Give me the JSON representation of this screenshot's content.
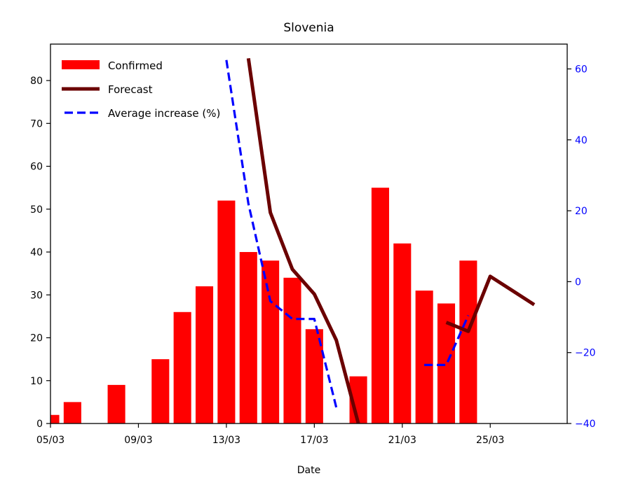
{
  "chart_data": {
    "type": "bar",
    "title": "Slovenia",
    "xlabel": "Date",
    "ylabel": "",
    "ylabel_right": "",
    "x_tick_labels": [
      "05/03",
      "09/03",
      "13/03",
      "17/03",
      "21/03",
      "25/03"
    ],
    "x_tick_days": [
      5,
      9,
      13,
      17,
      21,
      25
    ],
    "x_range_days": [
      5,
      28.5
    ],
    "ylim": [
      0,
      88.5
    ],
    "y_ticks": [
      0,
      10,
      20,
      30,
      40,
      50,
      60,
      70,
      80
    ],
    "ylim_right": [
      -40,
      67
    ],
    "y_ticks_right": [
      -40,
      -20,
      0,
      20,
      40,
      60
    ],
    "grid": false,
    "legend_position": "top-left",
    "series": [
      {
        "name": "Confirmed",
        "kind": "bar",
        "axis": "left",
        "color": "#ff0000",
        "days": [
          5,
          6,
          7,
          8,
          9,
          10,
          11,
          12,
          13,
          14,
          15,
          16,
          17,
          18,
          19,
          20,
          21,
          22,
          23,
          24
        ],
        "values": [
          2,
          5,
          0,
          9,
          0,
          15,
          26,
          32,
          52,
          40,
          38,
          34,
          22,
          0,
          11,
          55,
          42,
          31,
          28,
          38
        ]
      },
      {
        "name": "Forecast",
        "kind": "line",
        "axis": "right",
        "color": "#6b0000",
        "style": "solid",
        "segments": [
          [
            [
              14,
              63
            ],
            [
              15,
              19.5
            ],
            [
              16,
              3.5
            ],
            [
              17,
              -3.5
            ],
            [
              18,
              -16.5
            ],
            [
              19,
              -40
            ]
          ],
          [
            [
              23,
              -11.5
            ],
            [
              24,
              -14
            ],
            [
              25,
              1.5
            ],
            [
              26,
              -2.5
            ],
            [
              27,
              -6.5
            ]
          ]
        ]
      },
      {
        "name": "Average increase (%)",
        "kind": "line",
        "axis": "right",
        "color": "#0000ff",
        "style": "dashed",
        "segments": [
          [
            [
              13,
              62.5
            ],
            [
              14,
              22
            ],
            [
              15,
              -5.5
            ],
            [
              16,
              -10.5
            ],
            [
              17,
              -10.5
            ],
            [
              18,
              -35.5
            ]
          ],
          [
            [
              22,
              -23.5
            ],
            [
              23,
              -23.5
            ],
            [
              24,
              -9.5
            ]
          ]
        ]
      }
    ]
  }
}
